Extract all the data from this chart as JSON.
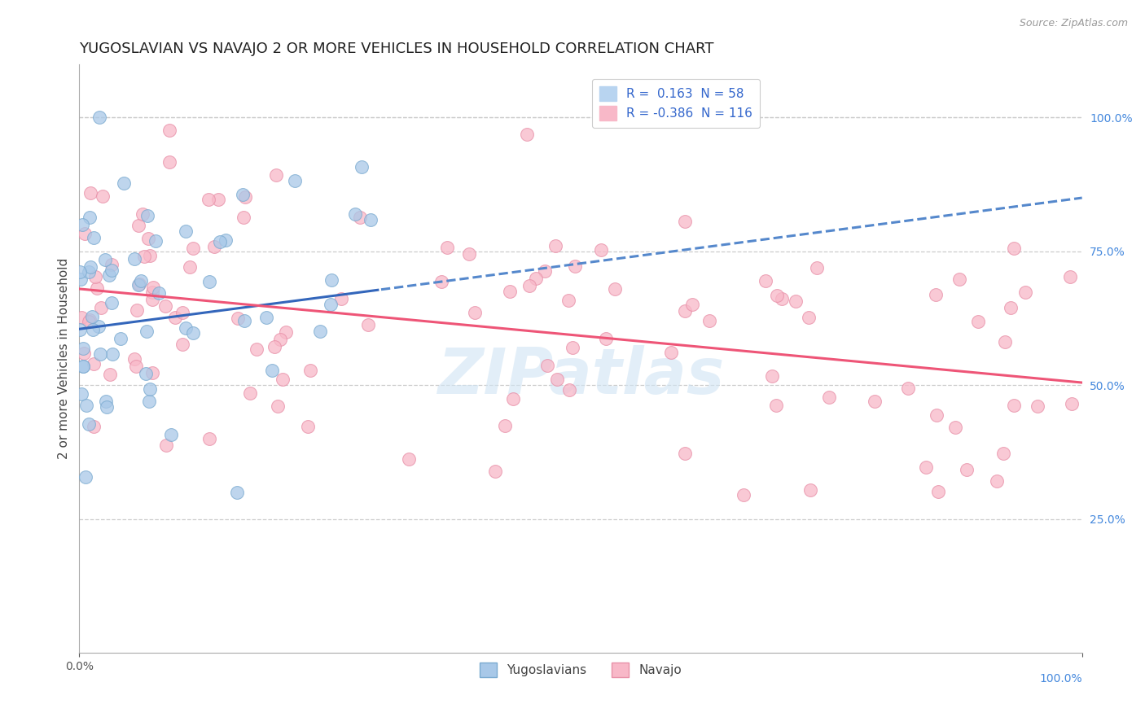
{
  "title": "YUGOSLAVIAN VS NAVAJO 2 OR MORE VEHICLES IN HOUSEHOLD CORRELATION CHART",
  "source_text": "Source: ZipAtlas.com",
  "ylabel": "2 or more Vehicles in Household",
  "xlim": [
    0.0,
    100.0
  ],
  "ylim": [
    0.0,
    110.0
  ],
  "yticks_right": [
    25.0,
    50.0,
    75.0,
    100.0
  ],
  "xticks": [
    0.0,
    100.0
  ],
  "blue_color": "#a8c8e8",
  "blue_edge_color": "#7aaad0",
  "pink_color": "#f8b8c8",
  "pink_edge_color": "#e890a8",
  "blue_line_color": "#5588cc",
  "blue_line_solid_color": "#3366bb",
  "pink_line_color": "#ee5577",
  "grid_color": "#cccccc",
  "background_color": "#ffffff",
  "watermark_color": "#d0e4f4",
  "watermark_alpha": 0.6,
  "title_fontsize": 13,
  "axis_label_fontsize": 11,
  "tick_fontsize": 10,
  "legend_fontsize": 11,
  "right_tick_color": "#4488dd",
  "scatter_size": 130,
  "scatter_alpha": 0.75,
  "blue_trend_start_y": 60.5,
  "blue_trend_end_y": 85.0,
  "pink_trend_start_y": 68.0,
  "pink_trend_end_y": 50.5,
  "blue_solid_end_x": 30.0
}
